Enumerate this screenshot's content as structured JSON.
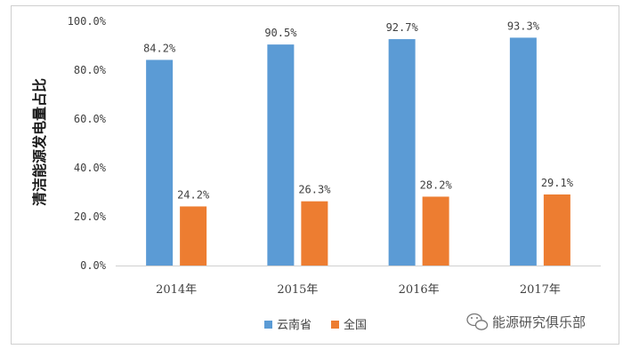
{
  "chart_data": {
    "type": "bar",
    "categories": [
      "2014年",
      "2015年",
      "2016年",
      "2017年"
    ],
    "series": [
      {
        "name": "云南省",
        "values": [
          84.2,
          90.5,
          92.7,
          93.3
        ],
        "labels": [
          "84.2%",
          "90.5%",
          "92.7%",
          "93.3%"
        ],
        "color": "#5B9BD5"
      },
      {
        "name": "全国",
        "values": [
          24.2,
          26.3,
          28.2,
          29.1
        ],
        "labels": [
          "24.2%",
          "26.3%",
          "28.2%",
          "29.1%"
        ],
        "color": "#ED7D31"
      }
    ],
    "ylabel": "清洁能源发电量占比",
    "xlabel": "",
    "ylim": [
      0,
      100
    ],
    "yticks": [
      "0.0%",
      "20.0%",
      "40.0%",
      "60.0%",
      "80.0%",
      "100.0%"
    ],
    "grid": false,
    "legend_position": "bottom"
  },
  "watermark": {
    "text": "能源研究俱乐部",
    "icon": "wechat-icon"
  }
}
